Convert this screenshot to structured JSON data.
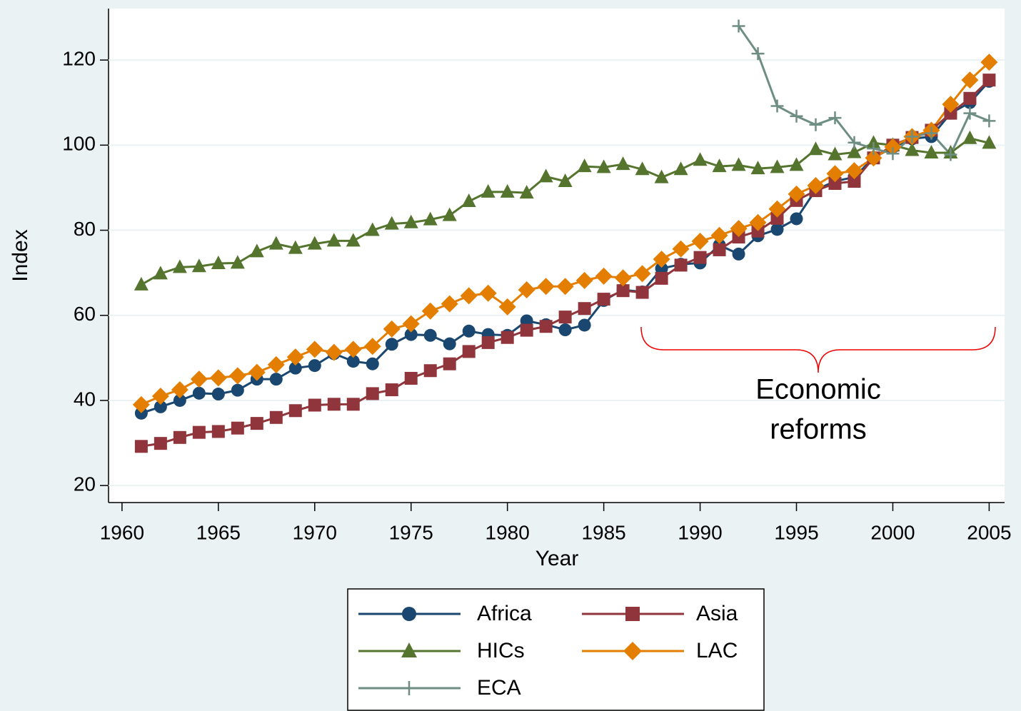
{
  "chart_data": {
    "type": "line",
    "x_label": "Year",
    "y_label": "Index",
    "annotation": [
      "Economic",
      "reforms"
    ],
    "x": [
      1961,
      1962,
      1963,
      1964,
      1965,
      1966,
      1967,
      1968,
      1969,
      1970,
      1971,
      1972,
      1973,
      1974,
      1975,
      1976,
      1977,
      1978,
      1979,
      1980,
      1981,
      1982,
      1983,
      1984,
      1985,
      1986,
      1987,
      1988,
      1989,
      1990,
      1991,
      1992,
      1993,
      1994,
      1995,
      1996,
      1997,
      1998,
      1999,
      2000,
      2001,
      2002,
      2003,
      2004,
      2005
    ],
    "series": [
      {
        "name": "Africa",
        "color": "#1a476f",
        "marker": "circle",
        "values": [
          37,
          38.5,
          40,
          41.7,
          41.5,
          42.4,
          45,
          45,
          47.6,
          48.2,
          51,
          49.2,
          48.6,
          53.2,
          55.5,
          55.3,
          53.3,
          56.3,
          55.5,
          55.3,
          58.7,
          57.8,
          56.6,
          57.7,
          63.5,
          66,
          65.5,
          71,
          72,
          72.3,
          76.5,
          74.4,
          78.7,
          80.2,
          82.7,
          89.5,
          91.5,
          92.5,
          97,
          99.5,
          101.5,
          102,
          107.5,
          110,
          115
        ]
      },
      {
        "name": "Asia",
        "color": "#90353b",
        "marker": "square",
        "values": [
          29.2,
          29.9,
          31.3,
          32.5,
          32.7,
          33.5,
          34.6,
          36,
          37.6,
          38.9,
          39.1,
          39.1,
          41.6,
          42.5,
          45.2,
          47,
          48.6,
          51.5,
          53.6,
          54.8,
          56.5,
          57.4,
          59.6,
          61.6,
          63.8,
          65.8,
          65.4,
          68.7,
          71.8,
          73.6,
          75.4,
          78.4,
          79.8,
          82.8,
          87,
          89.3,
          91,
          91.5,
          97,
          100,
          101.8,
          103.5,
          107.5,
          111,
          115.3
        ]
      },
      {
        "name": "HICs",
        "color": "#55752f",
        "marker": "triangle",
        "values": [
          67.2,
          69.8,
          71.3,
          71.5,
          72.2,
          72.3,
          75,
          76.8,
          75.8,
          76.8,
          77.5,
          77.5,
          80,
          81.5,
          81.8,
          82.5,
          83.5,
          86.8,
          89,
          89,
          88.8,
          92.6,
          91.5,
          95,
          94.8,
          95.5,
          94.3,
          92.4,
          94.3,
          96.5,
          95,
          95.3,
          94.5,
          94.8,
          95.3,
          99,
          97.8,
          98.3,
          100.5,
          100,
          98.8,
          98.2,
          98.2,
          101.6,
          100.5
        ]
      },
      {
        "name": "LAC",
        "color": "#e37e00",
        "marker": "diamond",
        "values": [
          39,
          41,
          42.5,
          45,
          45.3,
          45.8,
          46.6,
          48.4,
          50.2,
          52,
          51.3,
          52,
          52.7,
          56.8,
          58,
          61,
          62.7,
          64.6,
          65.2,
          62,
          66,
          66.8,
          66.8,
          68.2,
          69.2,
          68.8,
          69.8,
          73.2,
          75.6,
          77.4,
          78.8,
          80.4,
          81.8,
          85,
          88.5,
          90.5,
          93.3,
          94,
          97,
          99.6,
          102,
          103.5,
          109.6,
          115.3,
          119.5
        ]
      },
      {
        "name": "ECA",
        "color": "#6e8e84",
        "marker": "plus",
        "values": [
          null,
          null,
          null,
          null,
          null,
          null,
          null,
          null,
          null,
          null,
          null,
          null,
          null,
          null,
          null,
          null,
          null,
          null,
          null,
          null,
          null,
          null,
          null,
          null,
          null,
          null,
          null,
          null,
          null,
          null,
          null,
          128,
          121.5,
          109.2,
          106.8,
          104.8,
          106.4,
          100.6,
          99.2,
          98,
          102,
          102.8,
          97.8,
          107.5,
          105.7
        ]
      }
    ],
    "xlim": [
      1959.3,
      2005.8
    ],
    "ylim": [
      16,
      132.1
    ],
    "xticks": [
      1960,
      1965,
      1970,
      1975,
      1980,
      1985,
      1990,
      1995,
      2000,
      2005
    ],
    "yticks": [
      20,
      40,
      60,
      80,
      100,
      120
    ],
    "grid": true,
    "legend": {
      "position": "bottom",
      "columns": 2
    }
  }
}
